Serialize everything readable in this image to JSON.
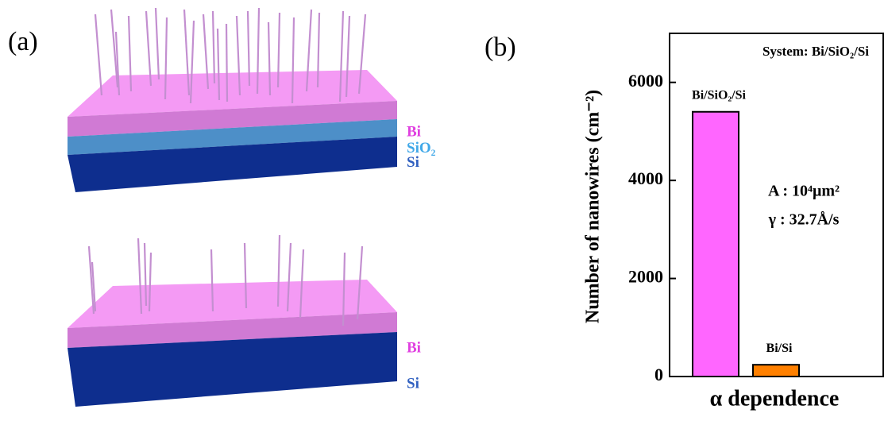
{
  "panel_a": {
    "label": "(a)",
    "top_stack": {
      "layers": [
        "Bi",
        "SiO₂",
        "Si"
      ]
    },
    "bottom_stack": {
      "layers": [
        "Bi",
        "Si"
      ]
    }
  },
  "chart_data": {
    "type": "bar",
    "panel_label": "(b)",
    "annotation": "System: Bi/SiO₂/Si",
    "categories": [
      "Bi/SiO₂/Si",
      "Bi/Si"
    ],
    "values": [
      5400,
      240
    ],
    "colors": [
      "#ff66ff",
      "#ff8000"
    ],
    "ylabel": "Number of nanowires (cm⁻²)",
    "xlabel": "α dependence",
    "ylim": [
      0,
      7000
    ],
    "yticks": [
      0,
      2000,
      4000,
      6000
    ],
    "annotations": [
      "A : 10⁴μm²",
      "γ : 32.7Å/s"
    ]
  }
}
